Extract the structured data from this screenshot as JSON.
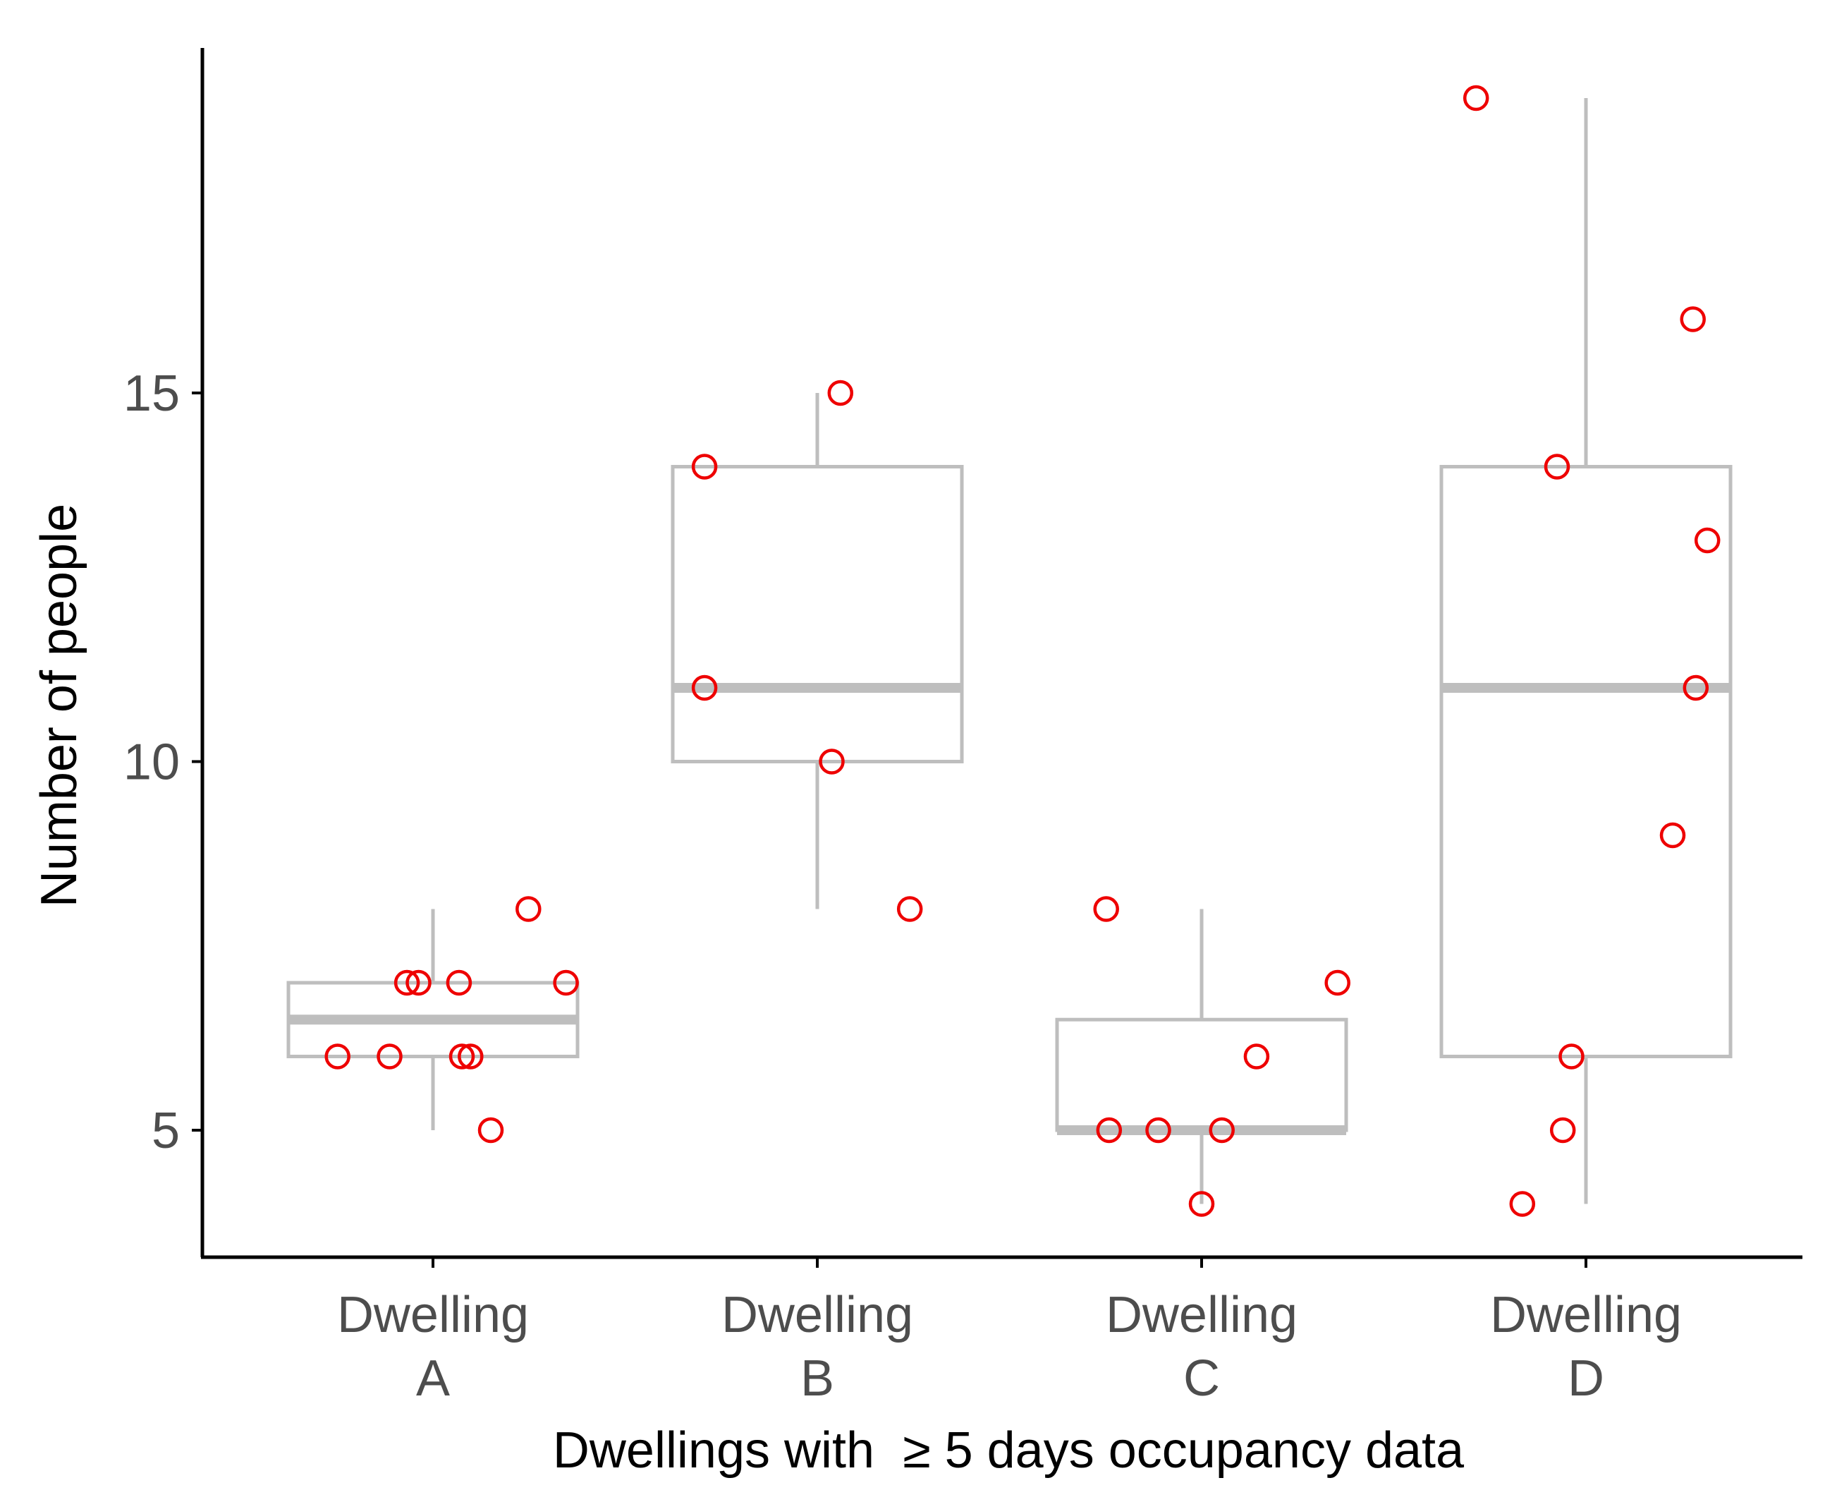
{
  "chart_data": {
    "type": "box",
    "title": "",
    "xlabel": "Dwellings with  ≥ 5 days occupancy data",
    "ylabel": "Number of people",
    "ylim": [
      3.3,
      19.8
    ],
    "yticks": [
      5,
      10,
      15
    ],
    "categories": [
      {
        "line1": "Dwelling",
        "line2": "A"
      },
      {
        "line1": "Dwelling",
        "line2": "B"
      },
      {
        "line1": "Dwelling",
        "line2": "C"
      },
      {
        "line1": "Dwelling",
        "line2": "D"
      }
    ],
    "boxes": [
      {
        "name": "Dwelling A",
        "whisker_low": 5,
        "q1": 6,
        "median": 6.5,
        "q3": 7,
        "whisker_high": 8,
        "outliers": []
      },
      {
        "name": "Dwelling B",
        "whisker_low": 8,
        "q1": 10,
        "median": 11,
        "q3": 14,
        "whisker_high": 15,
        "outliers": []
      },
      {
        "name": "Dwelling C",
        "whisker_low": 4,
        "q1": 5,
        "median": 5,
        "q3": 6.5,
        "whisker_high": 8,
        "outliers": []
      },
      {
        "name": "Dwelling D",
        "whisker_low": 4,
        "q1": 6,
        "median": 11,
        "q3": 14,
        "whisker_high": 19,
        "outliers": []
      }
    ],
    "points": [
      [
        {
          "jitter": -0.33,
          "value": 6
        },
        {
          "jitter": -0.15,
          "value": 6
        },
        {
          "jitter": -0.09,
          "value": 7
        },
        {
          "jitter": -0.05,
          "value": 7
        },
        {
          "jitter": 0.09,
          "value": 7
        },
        {
          "jitter": 0.1,
          "value": 6
        },
        {
          "jitter": 0.13,
          "value": 6
        },
        {
          "jitter": 0.2,
          "value": 5
        },
        {
          "jitter": 0.33,
          "value": 8
        },
        {
          "jitter": 0.46,
          "value": 7
        }
      ],
      [
        {
          "jitter": -0.39,
          "value": 14
        },
        {
          "jitter": -0.39,
          "value": 11
        },
        {
          "jitter": 0.05,
          "value": 10
        },
        {
          "jitter": 0.08,
          "value": 15
        },
        {
          "jitter": 0.32,
          "value": 8
        }
      ],
      [
        {
          "jitter": -0.33,
          "value": 8
        },
        {
          "jitter": -0.32,
          "value": 5
        },
        {
          "jitter": -0.15,
          "value": 5
        },
        {
          "jitter": 0.0,
          "value": 4
        },
        {
          "jitter": 0.07,
          "value": 5
        },
        {
          "jitter": 0.19,
          "value": 6
        },
        {
          "jitter": 0.47,
          "value": 7
        }
      ],
      [
        {
          "jitter": -0.38,
          "value": 19
        },
        {
          "jitter": -0.22,
          "value": 4
        },
        {
          "jitter": -0.1,
          "value": 14
        },
        {
          "jitter": -0.08,
          "value": 5
        },
        {
          "jitter": -0.05,
          "value": 6
        },
        {
          "jitter": 0.3,
          "value": 9
        },
        {
          "jitter": 0.37,
          "value": 16
        },
        {
          "jitter": 0.38,
          "value": 11
        },
        {
          "jitter": 0.42,
          "value": 13
        }
      ]
    ],
    "colors": {
      "box": "#bebebe",
      "point": "#ee0000",
      "axis": "#000000",
      "tick_text": "#4d4d4d"
    },
    "legend": "none",
    "grid": false
  }
}
